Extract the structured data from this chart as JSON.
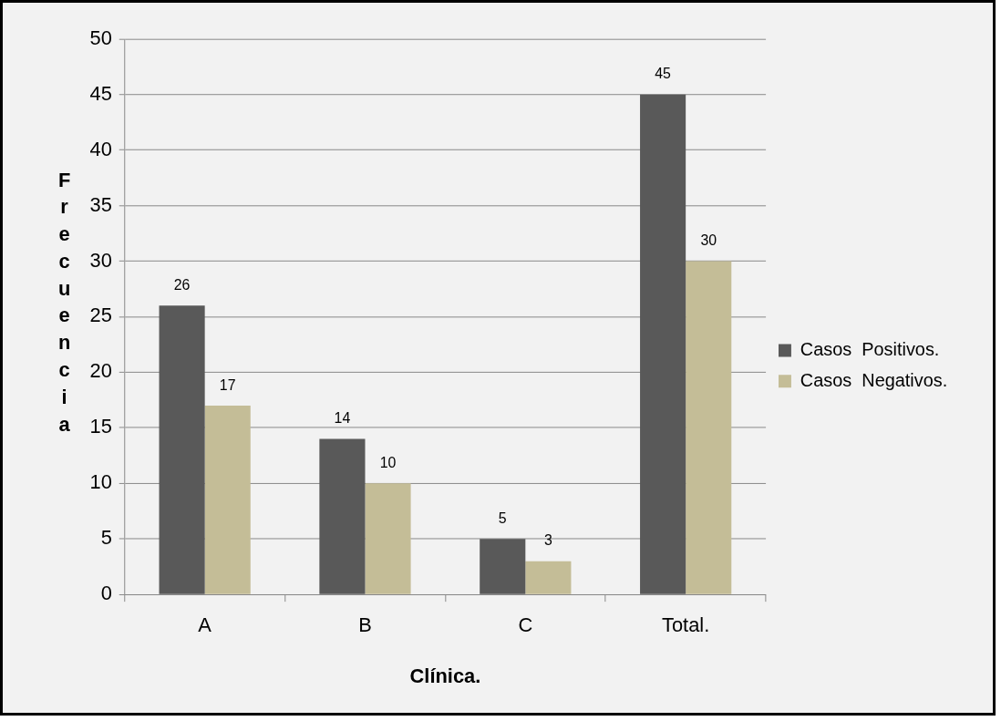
{
  "chart_data": {
    "type": "bar",
    "xlabel": "Clínica.",
    "ylabel": "Frecuencia",
    "categories": [
      "A",
      "B",
      "C",
      "Total."
    ],
    "series": [
      {
        "name": "Casos  Positivos.",
        "color": "#595959",
        "values": [
          26,
          14,
          5,
          45
        ]
      },
      {
        "name": "Casos  Negativos.",
        "color": "#c4bd97",
        "values": [
          17,
          10,
          3,
          30
        ]
      }
    ],
    "ylim": [
      0,
      50
    ],
    "yticks": [
      0,
      5,
      10,
      15,
      20,
      25,
      30,
      35,
      40,
      45,
      50
    ],
    "grid": "y",
    "legend": "right",
    "data_labels": true
  }
}
